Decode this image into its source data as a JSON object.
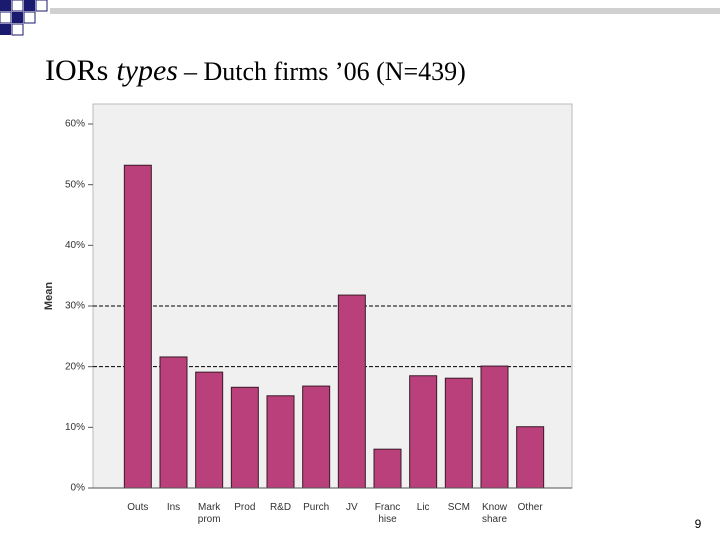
{
  "slide_number": "9",
  "chart_data": {
    "type": "bar",
    "title_parts": [
      "IORs",
      "types",
      "– Dutch firms ’06 (N=439)"
    ],
    "y_label": "Mean",
    "categories": [
      "Outs",
      "Ins",
      "Mark prom",
      "Prod",
      "R&D",
      "Purch",
      "JV",
      "Franc hise",
      "Lic",
      "SCM",
      "Know share",
      "Other"
    ],
    "values": [
      53.2,
      21.6,
      19.1,
      16.6,
      15.2,
      16.8,
      31.8,
      6.4,
      18.5,
      18.1,
      20.1,
      10.1
    ],
    "color": "#b9407a",
    "ylim": [
      0,
      60
    ],
    "yticks": [
      {
        "value": 0,
        "label": "0%"
      },
      {
        "value": 10,
        "label": "10%"
      },
      {
        "value": 20,
        "label": "20%"
      },
      {
        "value": 30,
        "label": "30%"
      },
      {
        "value": 40,
        "label": "40%"
      },
      {
        "value": 50,
        "label": "50%"
      },
      {
        "value": 60,
        "label": "60%"
      }
    ],
    "reference_lines": [
      20,
      30
    ]
  }
}
